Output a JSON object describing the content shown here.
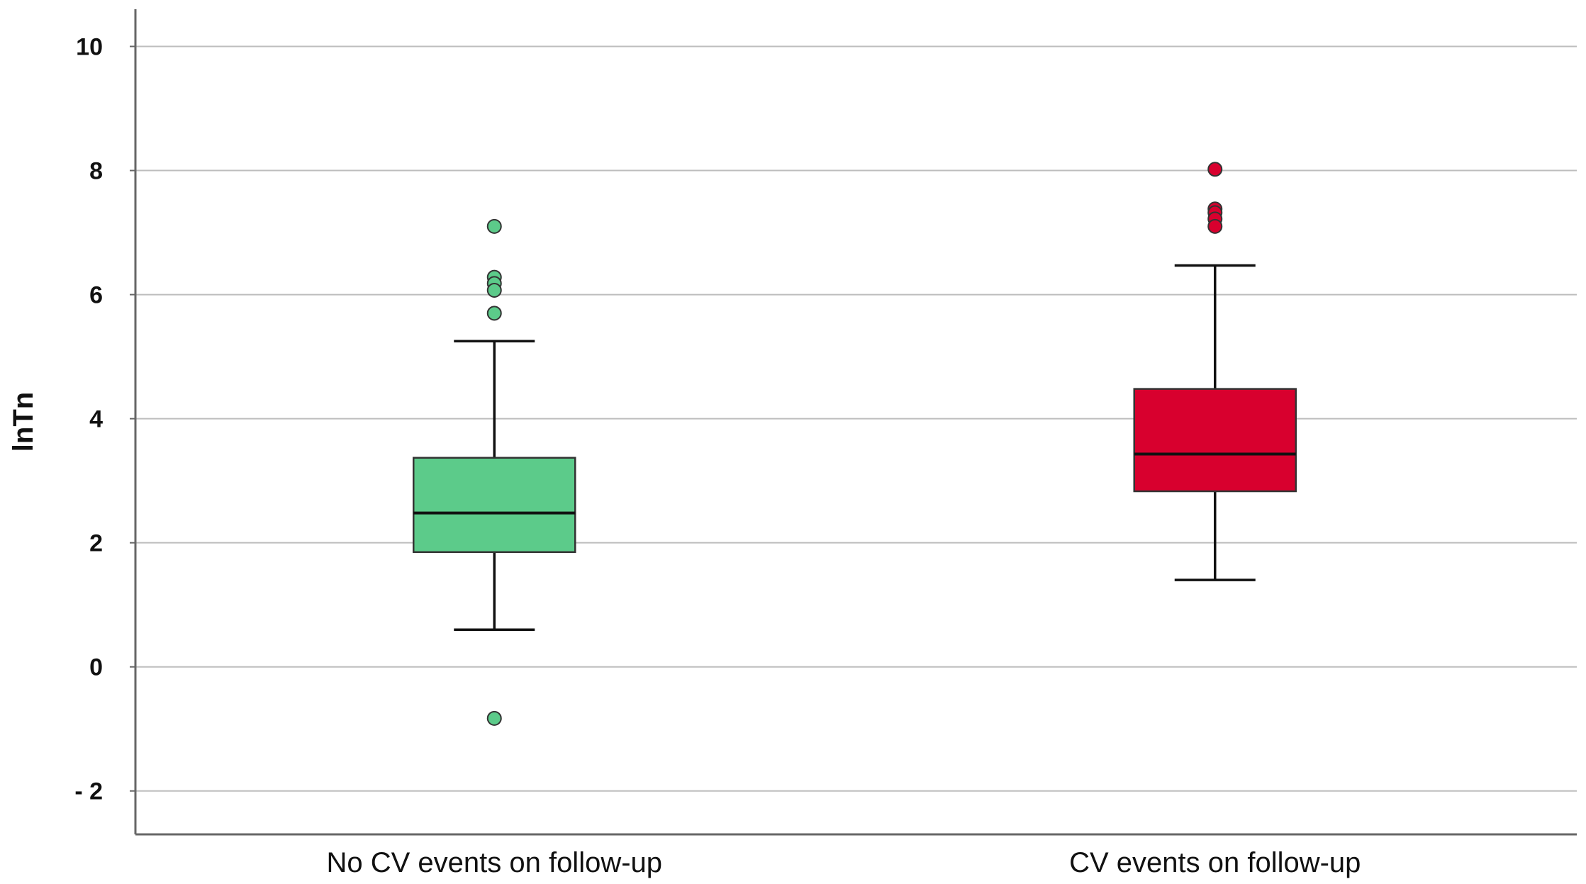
{
  "chart_data": {
    "type": "boxplot",
    "title": "",
    "xlabel": "",
    "ylabel": "lnTn",
    "ylim": [
      -2.7,
      10.6
    ],
    "yticks": [
      {
        "value": 10,
        "label": "10"
      },
      {
        "value": 8,
        "label": "8"
      },
      {
        "value": 6,
        "label": "6"
      },
      {
        "value": 4,
        "label": "4"
      },
      {
        "value": 2,
        "label": "2"
      },
      {
        "value": 0,
        "label": "0"
      },
      {
        "value": -2,
        "label": "- 2"
      }
    ],
    "grid": true,
    "categories": [
      "No CV events on follow-up",
      "CV events on follow-up"
    ],
    "series": [
      {
        "name": "No CV events on follow-up",
        "color": "#5ccb8a",
        "whisker_low": 0.6,
        "q1": 1.85,
        "median": 2.48,
        "q3": 3.37,
        "whisker_high": 5.25,
        "outliers": [
          7.1,
          6.28,
          6.18,
          6.07,
          5.7,
          -0.83
        ]
      },
      {
        "name": "CV events on follow-up",
        "color": "#d8002e",
        "whisker_low": 1.4,
        "q1": 2.83,
        "median": 3.43,
        "q3": 4.48,
        "whisker_high": 6.47,
        "outliers": [
          8.02,
          7.38,
          7.32,
          7.22,
          7.1
        ]
      }
    ]
  }
}
